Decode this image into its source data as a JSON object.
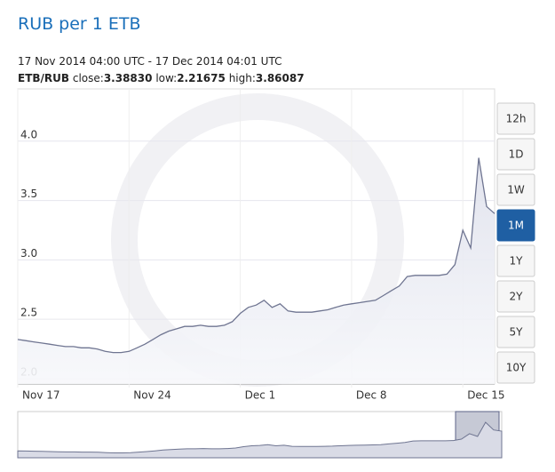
{
  "chart_data": {
    "type": "line",
    "title": "RUB per 1 ETB",
    "subtitle": "17 Nov 2014 04:00 UTC - 17 Dec 2014 04:01 UTC",
    "pair": "ETB/RUB",
    "stats": [
      {
        "label": "close:",
        "value": "3.38830"
      },
      {
        "label": "low:",
        "value": "2.21675"
      },
      {
        "label": "high:",
        "value": "3.86087"
      }
    ],
    "categories": [
      "Nov 17",
      null,
      null,
      null,
      null,
      null,
      null,
      null,
      null,
      null,
      null,
      null,
      null,
      null,
      "Nov 24",
      null,
      null,
      null,
      null,
      null,
      null,
      null,
      null,
      null,
      null,
      null,
      null,
      null,
      "Dec 1",
      null,
      null,
      null,
      null,
      null,
      null,
      null,
      null,
      null,
      null,
      null,
      null,
      null,
      "Dec 8",
      null,
      null,
      null,
      null,
      null,
      null,
      null,
      null,
      null,
      null,
      null,
      null,
      null,
      "Dec 15",
      null,
      null,
      null,
      null
    ],
    "values": [
      2.33,
      2.32,
      2.31,
      2.3,
      2.29,
      2.28,
      2.27,
      2.27,
      2.26,
      2.26,
      2.25,
      2.23,
      2.22,
      2.22,
      2.23,
      2.26,
      2.29,
      2.33,
      2.37,
      2.4,
      2.42,
      2.44,
      2.44,
      2.45,
      2.44,
      2.44,
      2.45,
      2.48,
      2.55,
      2.6,
      2.62,
      2.66,
      2.6,
      2.63,
      2.57,
      2.56,
      2.56,
      2.56,
      2.57,
      2.58,
      2.6,
      2.62,
      2.63,
      2.64,
      2.65,
      2.66,
      2.7,
      2.74,
      2.78,
      2.86,
      2.87,
      2.87,
      2.87,
      2.87,
      2.88,
      2.96,
      3.25,
      3.1,
      3.86,
      3.45,
      3.39
    ],
    "color": "#6f7591",
    "ylim": [
      1.955,
      4.44
    ],
    "yticks": [
      {
        "value": 2,
        "label": "2.0"
      },
      {
        "value": 2.5,
        "label": "2.5"
      },
      {
        "value": 3,
        "label": "3.0"
      },
      {
        "value": 3.5,
        "label": "3.5"
      },
      {
        "value": 4,
        "label": "4.0"
      }
    ],
    "grid": true
  },
  "range_buttons": {
    "options": [
      "12h",
      "1D",
      "1W",
      "1M",
      "1Y",
      "2Y",
      "5Y",
      "10Y"
    ],
    "active": "1M"
  }
}
